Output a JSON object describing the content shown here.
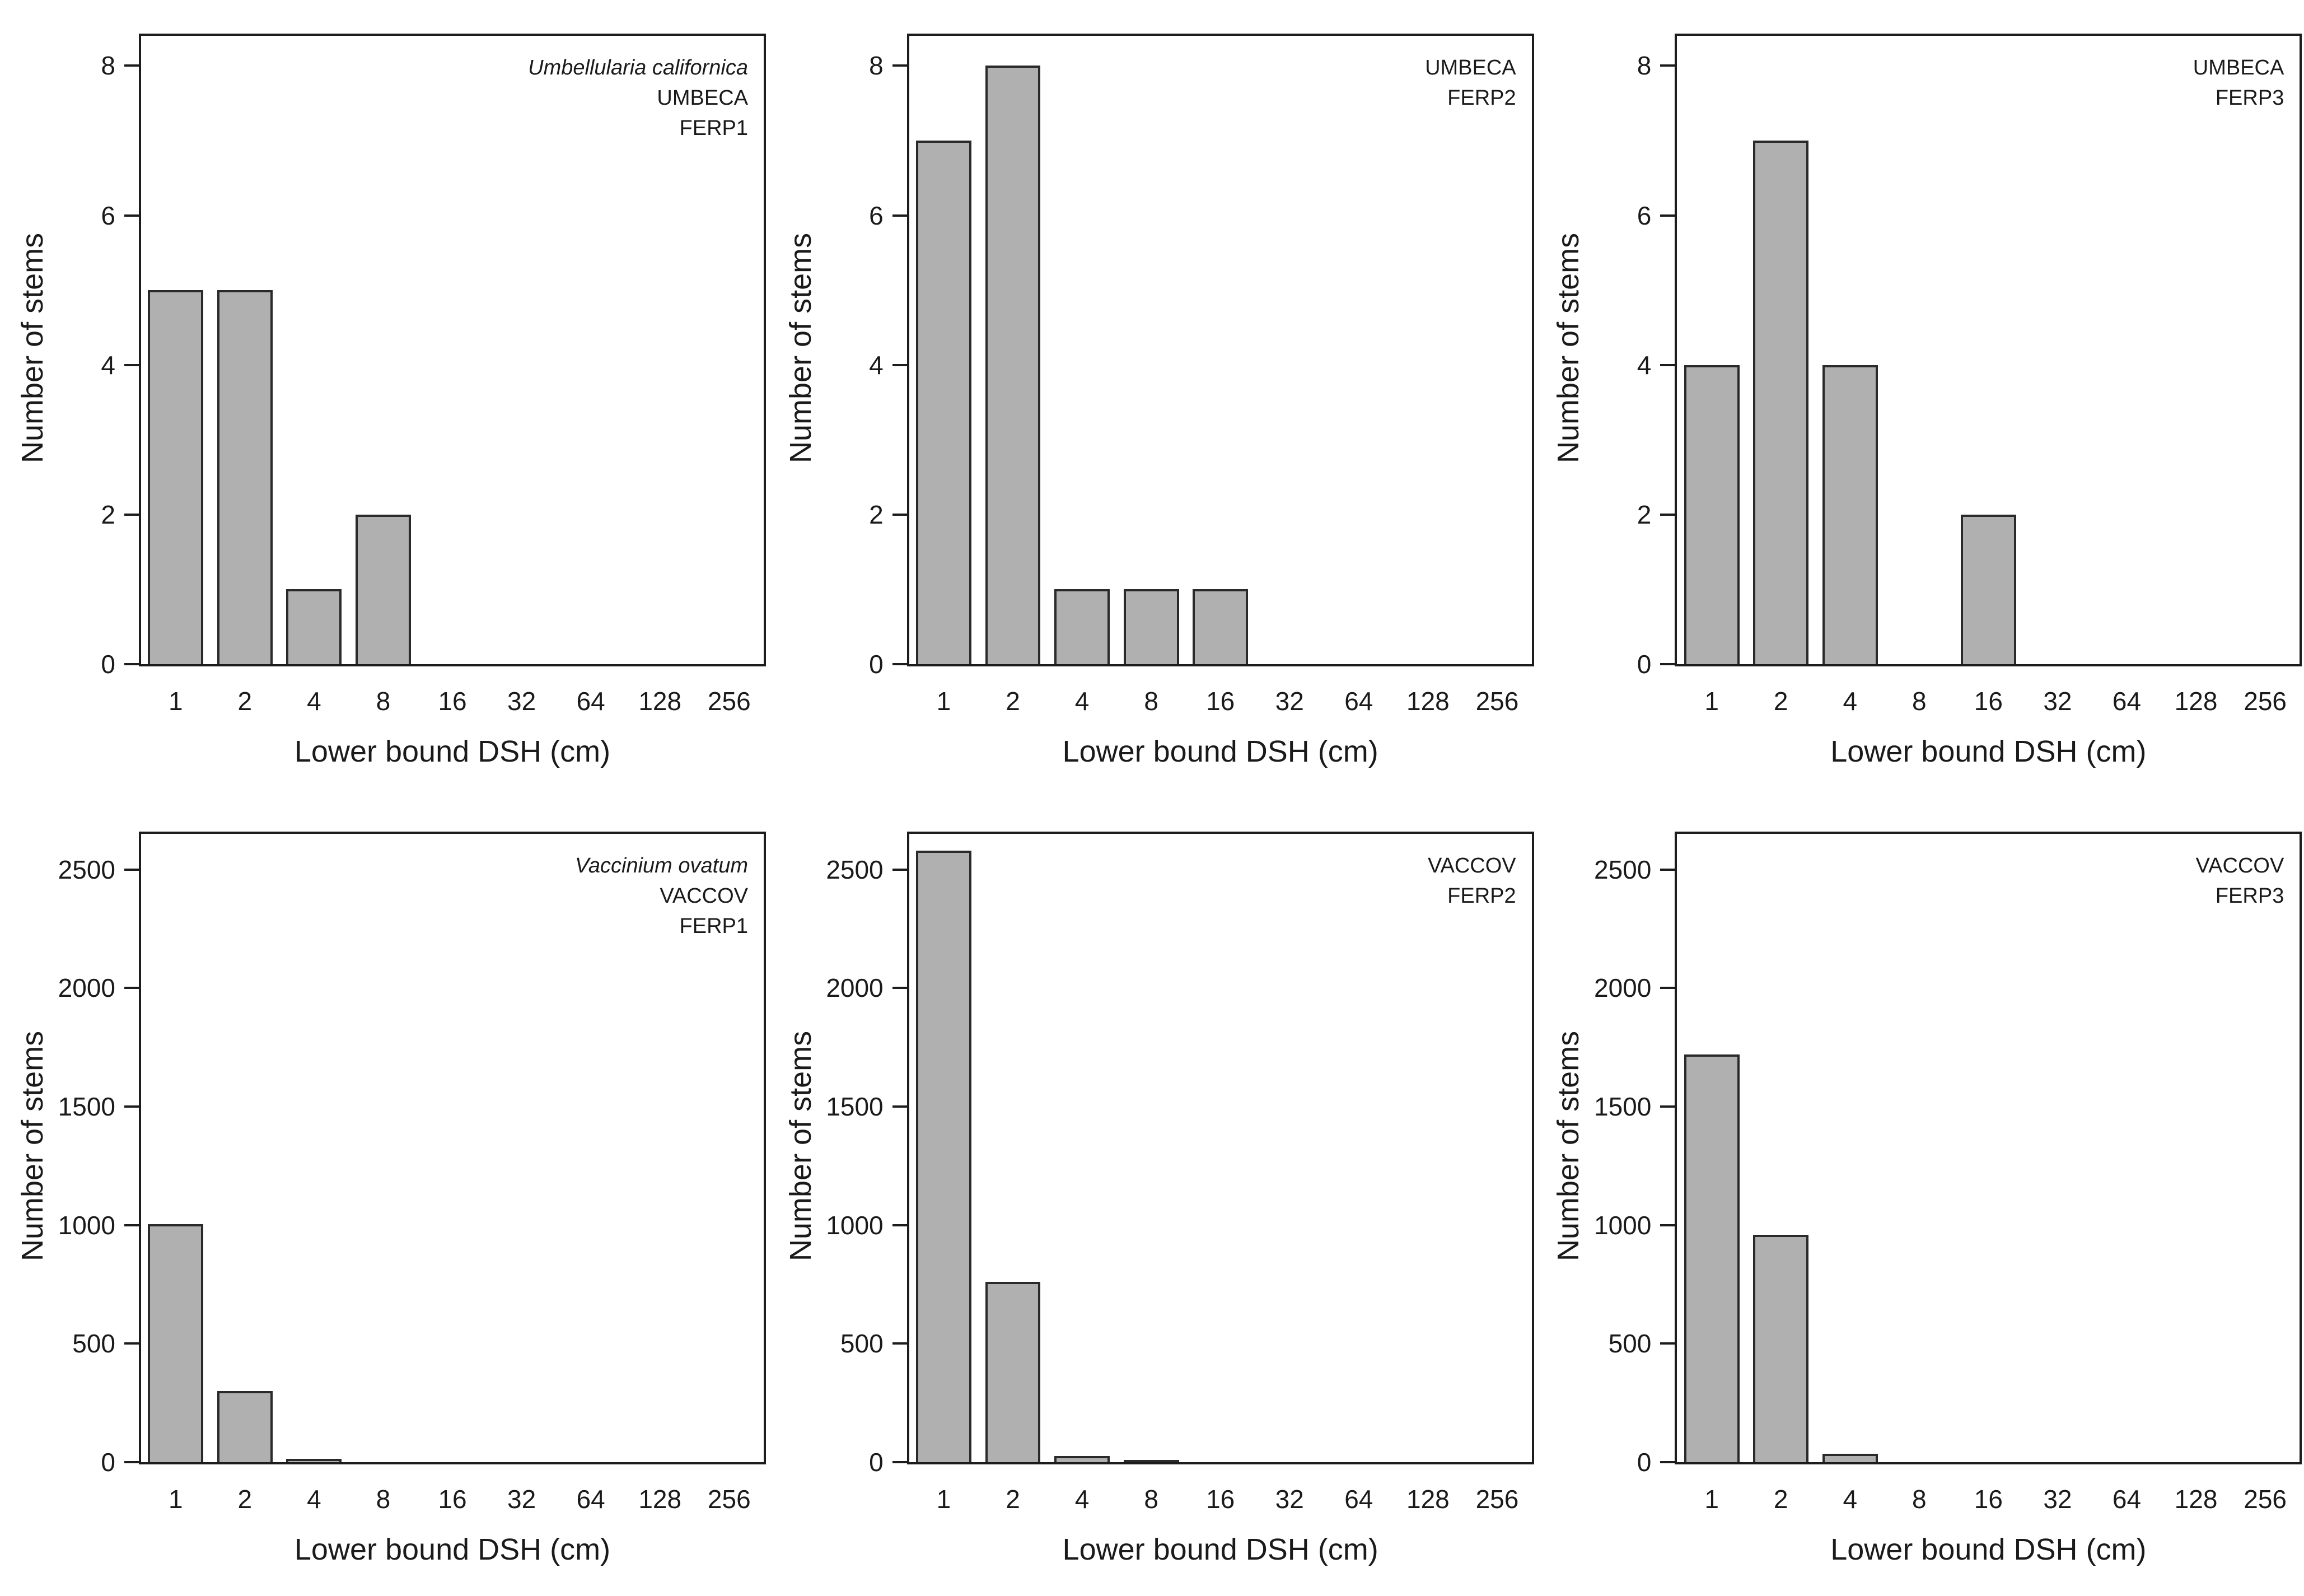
{
  "figure": {
    "background": "#ffffff",
    "layout": "2 rows x 3 columns of histograms",
    "colors": {
      "bar_fill": "#b0b0b0",
      "bar_border": "#2a2a2a",
      "axis_frame": "#1c1c1c",
      "text": "#1a1a1a"
    }
  },
  "chart_data": [
    {
      "type": "bar",
      "species": "Umbellularia californica",
      "code": "UMBECA",
      "plot": "FERP1",
      "categories": [
        "1",
        "2",
        "4",
        "8",
        "16",
        "32",
        "64",
        "128",
        "256"
      ],
      "values": [
        5,
        5,
        1,
        2,
        0,
        0,
        0,
        0,
        0
      ],
      "xlabel": "Lower bound DSH (cm)",
      "ylabel": "Number of stems",
      "ylim": [
        0,
        8.4
      ],
      "yticks": [
        0,
        2,
        4,
        6,
        8
      ],
      "grid": false,
      "legend": "none"
    },
    {
      "type": "bar",
      "species": "",
      "code": "UMBECA",
      "plot": "FERP2",
      "categories": [
        "1",
        "2",
        "4",
        "8",
        "16",
        "32",
        "64",
        "128",
        "256"
      ],
      "values": [
        7,
        8,
        1,
        1,
        1,
        0,
        0,
        0,
        0
      ],
      "xlabel": "Lower bound DSH (cm)",
      "ylabel": "Number of stems",
      "ylim": [
        0,
        8.4
      ],
      "yticks": [
        0,
        2,
        4,
        6,
        8
      ],
      "grid": false,
      "legend": "none"
    },
    {
      "type": "bar",
      "species": "",
      "code": "UMBECA",
      "plot": "FERP3",
      "categories": [
        "1",
        "2",
        "4",
        "8",
        "16",
        "32",
        "64",
        "128",
        "256"
      ],
      "values": [
        4,
        7,
        4,
        0,
        2,
        0,
        0,
        0,
        0
      ],
      "xlabel": "Lower bound DSH (cm)",
      "ylabel": "Number of stems",
      "ylim": [
        0,
        8.4
      ],
      "yticks": [
        0,
        2,
        4,
        6,
        8
      ],
      "grid": false,
      "legend": "none"
    },
    {
      "type": "bar",
      "species": "Vaccinium ovatum",
      "code": "VACCOV",
      "plot": "FERP1",
      "categories": [
        "1",
        "2",
        "4",
        "8",
        "16",
        "32",
        "64",
        "128",
        "256"
      ],
      "values": [
        1005,
        300,
        15,
        0,
        0,
        0,
        0,
        0,
        0
      ],
      "xlabel": "Lower bound DSH (cm)",
      "ylabel": "Number of stems",
      "ylim": [
        0,
        2650
      ],
      "yticks": [
        0,
        500,
        1000,
        1500,
        2000,
        2500
      ],
      "grid": false,
      "legend": "none"
    },
    {
      "type": "bar",
      "species": "",
      "code": "VACCOV",
      "plot": "FERP2",
      "categories": [
        "1",
        "2",
        "4",
        "8",
        "16",
        "32",
        "64",
        "128",
        "256"
      ],
      "values": [
        2580,
        760,
        25,
        8,
        0,
        0,
        0,
        0,
        0
      ],
      "xlabel": "Lower bound DSH (cm)",
      "ylabel": "Number of stems",
      "ylim": [
        0,
        2650
      ],
      "yticks": [
        0,
        500,
        1000,
        1500,
        2000,
        2500
      ],
      "grid": false,
      "legend": "none"
    },
    {
      "type": "bar",
      "species": "",
      "code": "VACCOV",
      "plot": "FERP3",
      "categories": [
        "1",
        "2",
        "4",
        "8",
        "16",
        "32",
        "64",
        "128",
        "256"
      ],
      "values": [
        1720,
        960,
        35,
        0,
        0,
        0,
        0,
        0,
        0
      ],
      "xlabel": "Lower bound DSH (cm)",
      "ylabel": "Number of stems",
      "ylim": [
        0,
        2650
      ],
      "yticks": [
        0,
        500,
        1000,
        1500,
        2000,
        2500
      ],
      "grid": false,
      "legend": "none"
    }
  ]
}
